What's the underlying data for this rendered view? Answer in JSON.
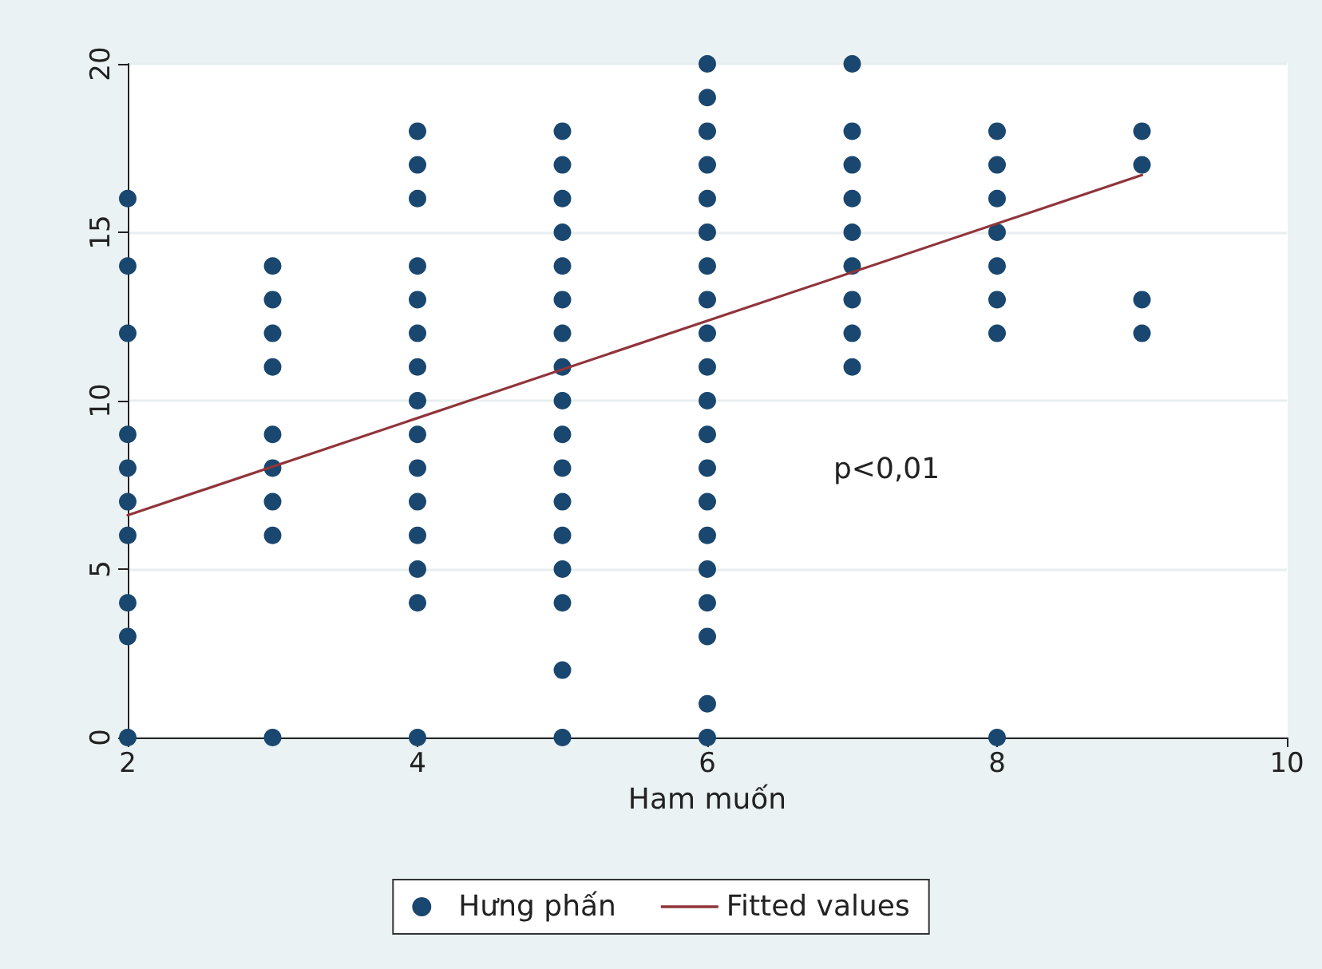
{
  "chart_data": {
    "type": "scatter",
    "xlabel": "Ham muốn",
    "xlim": [
      2,
      10
    ],
    "xticks": [
      2,
      4,
      6,
      8,
      10
    ],
    "ylim": [
      0,
      20
    ],
    "yticks": [
      0,
      5,
      10,
      15,
      20
    ],
    "grid": "y",
    "legend": "bottom",
    "marker": "circle",
    "annotations": [
      "p<0,01"
    ],
    "series": [
      {
        "name": "Hưng phấn",
        "color": "#1a476f",
        "x": [
          2,
          2,
          2,
          2,
          2,
          2,
          2,
          2,
          2,
          2,
          3,
          3,
          3,
          3,
          3,
          3,
          3,
          3,
          3,
          4,
          4,
          4,
          4,
          4,
          4,
          4,
          4,
          4,
          4,
          4,
          4,
          4,
          4,
          4,
          5,
          5,
          5,
          5,
          5,
          5,
          5,
          5,
          5,
          5,
          5,
          5,
          5,
          5,
          5,
          5,
          5,
          6,
          6,
          6,
          6,
          6,
          6,
          6,
          6,
          6,
          6,
          6,
          6,
          6,
          6,
          6,
          6,
          6,
          6,
          6,
          6,
          7,
          7,
          7,
          7,
          7,
          7,
          7,
          7,
          7,
          8,
          8,
          8,
          8,
          8,
          8,
          8,
          8,
          9,
          9,
          9,
          9
        ],
        "values": [
          16,
          14,
          12,
          9,
          8,
          7,
          6,
          4,
          3,
          0,
          14,
          13,
          12,
          11,
          9,
          8,
          7,
          6,
          0,
          18,
          17,
          16,
          14,
          13,
          12,
          11,
          10,
          9,
          8,
          7,
          6,
          5,
          4,
          0,
          18,
          17,
          16,
          15,
          14,
          13,
          12,
          11,
          10,
          9,
          8,
          7,
          6,
          5,
          4,
          2,
          0,
          20,
          19,
          18,
          17,
          16,
          15,
          14,
          13,
          12,
          11,
          10,
          9,
          8,
          7,
          6,
          5,
          4,
          3,
          1,
          0,
          20,
          18,
          17,
          16,
          15,
          14,
          13,
          12,
          11,
          18,
          17,
          16,
          15,
          14,
          13,
          12,
          0,
          18,
          17,
          13,
          12
        ]
      },
      {
        "name": "Fitted values",
        "color": "#90353b",
        "type": "line",
        "marker": "none",
        "line_style": "solid",
        "x": [
          2,
          9
        ],
        "values": [
          6.6,
          16.7
        ]
      }
    ]
  }
}
